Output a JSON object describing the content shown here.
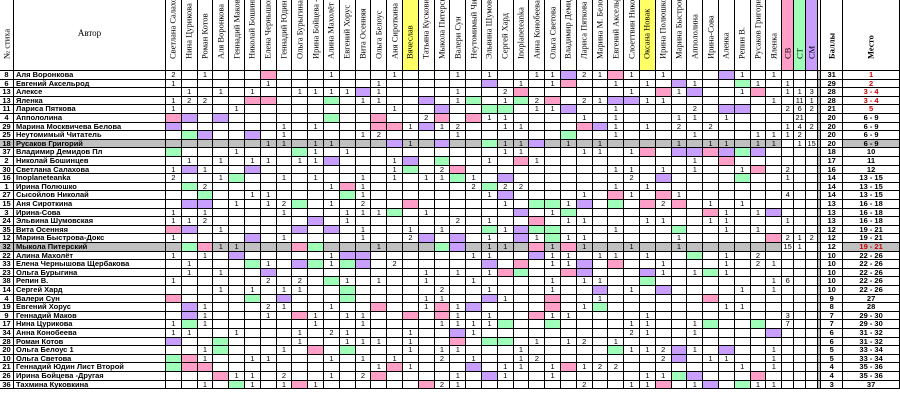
{
  "headers": {
    "num": "№ стиха",
    "author": "Автор",
    "judges": [
      "Светлана Салахова",
      "Нина Цурикова",
      "Роман Котов",
      "Аля Воронкова",
      "Геннадий Маков",
      "Николай Бошинцев",
      "Елена Чернышова Щ",
      "Геннадий Юдин ЛВ",
      "Ольга Бурыгина",
      "Ирина Бойцева -Друг",
      "Алина Махолёт",
      "Евгений Хорус",
      "Вита Осенняя",
      "Ольга Белоус",
      "Аня Сироткина",
      "Вячеслав",
      "Татьяна Кусковина",
      "Мыкола Питерский",
      "Валери Сун",
      "Неутомимый Читатель",
      "Эльвина Шумовская",
      "Сергей Хард",
      "Inoplaneteanka",
      "Анна Конобеева",
      "Ольга Светова",
      "Владимир Демидов",
      "Лариса Пяткова",
      "Марина М. Белова",
      "Евгений Аксельрод",
      "Слоеттвин Николай",
      "Оксана Новак",
      "Ирина Полюшко",
      "Марина Быстрова-Д",
      "Аппололина",
      "Ирина-Сова",
      "Аленка",
      "Репин В.",
      "Русаков Григорий",
      "Яленка"
    ],
    "sv": "СВ",
    "st": "СТ",
    "sm": "СМ",
    "score": "Баллы",
    "place": "Место"
  },
  "judge_header_colors": [
    "#fff",
    "#fff",
    "#fff",
    "#fff",
    "#fff",
    "#fff",
    "#fff",
    "#fff",
    "#fff",
    "#fff",
    "#fff",
    "#fff",
    "#fff",
    "#fff",
    "#fff",
    "#ffff66",
    "#fff",
    "#fff",
    "#fff",
    "#fff",
    "#fff",
    "#fff",
    "#fff",
    "#fff",
    "#fff",
    "#fff",
    "#fff",
    "#fff",
    "#fff",
    "#fff",
    "#ffff66",
    "#fff",
    "#fff",
    "#fff",
    "#fff",
    "#fff",
    "#fff",
    "#fff",
    "#fff"
  ],
  "extra_header_colors": {
    "sv": "#ff9fc8",
    "st": "#9fffb8",
    "sm": "#c89fff"
  },
  "rows": [
    {
      "num": "8",
      "author": "Аля Воронкова",
      "score": "31",
      "place": "1",
      "red": true
    },
    {
      "num": "6",
      "author": "Евгений Аксельрод",
      "score": "29",
      "place": "2",
      "red": true
    },
    {
      "num": "13",
      "author": "Алексе",
      "score": "28",
      "place": "3 - 4",
      "red": true
    },
    {
      "num": "13",
      "author": "Яленка",
      "score": "28",
      "place": "3 - 4",
      "red": true
    },
    {
      "num": "11",
      "author": "Лариса Пяткова",
      "score": "21",
      "place": "5",
      "red": true
    },
    {
      "num": "4",
      "author": "Аппололина",
      "score": "20",
      "place": "6 - 9",
      "red": false
    },
    {
      "num": "29",
      "author": "Марина Москвичева Белова",
      "score": "20",
      "place": "6 - 9",
      "red": false
    },
    {
      "num": "25",
      "author": "Неутомимый Читатель",
      "score": "20",
      "place": "6 - 9",
      "red": false
    },
    {
      "num": "18",
      "author": "Русаков Григорий",
      "score": "20",
      "place": "6 - 9",
      "red": false,
      "hl": true
    },
    {
      "num": "37",
      "author": "Владимир Демидов Пл",
      "score": "18",
      "place": "10",
      "red": false
    },
    {
      "num": "2",
      "author": "Николай Бошинцев",
      "score": "17",
      "place": "11",
      "red": false
    },
    {
      "num": "30",
      "author": "Светлана Салахова",
      "score": "16",
      "place": "12",
      "red": false
    },
    {
      "num": "16",
      "author": "Inoplaneteanka",
      "score": "14",
      "place": "13 - 15",
      "red": false
    },
    {
      "num": "1",
      "author": "Ирина Полюшко",
      "score": "14",
      "place": "13 - 15",
      "red": false
    },
    {
      "num": "27",
      "author": "Сысойлов Николай",
      "score": "14",
      "place": "13 - 15",
      "red": false
    },
    {
      "num": "15",
      "author": "Аня Сироткина",
      "score": "13",
      "place": "16 - 18",
      "red": false
    },
    {
      "num": "3",
      "author": "Ирина-Сова",
      "score": "13",
      "place": "16 - 18",
      "red": false
    },
    {
      "num": "24",
      "author": "Эльвина Шумовская",
      "score": "13",
      "place": "16 - 18",
      "red": false
    },
    {
      "num": "35",
      "author": "Вита Осенняя",
      "score": "12",
      "place": "19 - 21",
      "red": false
    },
    {
      "num": "12",
      "author": "Марина Быстрова-Докс",
      "score": "12",
      "place": "19 - 21",
      "red": false
    },
    {
      "num": "32",
      "author": "Мыкола Питерский",
      "score": "12",
      "place": "19 - 21",
      "red": true,
      "hl": true
    },
    {
      "num": "22",
      "author": "Алина Махолёт",
      "score": "10",
      "place": "22 - 26",
      "red": false
    },
    {
      "num": "33",
      "author": "Елена Чернышова Щербакова",
      "score": "10",
      "place": "22 - 26",
      "red": false
    },
    {
      "num": "23",
      "author": "Ольга Бурыгина",
      "score": "10",
      "place": "22 - 26",
      "red": false
    },
    {
      "num": "38",
      "author": "Репин В.",
      "score": "10",
      "place": "22 - 26",
      "red": false
    },
    {
      "num": "14",
      "author": "Сергей Хард",
      "score": "10",
      "place": "22 - 26",
      "red": false
    },
    {
      "num": "4",
      "author": "Валери Сун",
      "score": "9",
      "place": "27",
      "red": false
    },
    {
      "num": "19",
      "author": "Евгений Хорус",
      "score": "8",
      "place": "28",
      "red": false
    },
    {
      "num": "9",
      "author": "Геннадий Маков",
      "score": "7",
      "place": "29 - 30",
      "red": false
    },
    {
      "num": "17",
      "author": "Нина Цурикова",
      "score": "7",
      "place": "29 - 30",
      "red": false
    },
    {
      "num": "34",
      "author": "Анна Конобеева",
      "score": "6",
      "place": "31 - 32",
      "red": false
    },
    {
      "num": "28",
      "author": "Роман Котов",
      "score": "6",
      "place": "31 - 32",
      "red": false
    },
    {
      "num": "20",
      "author": "Ольга Белоус 1",
      "score": "5",
      "place": "33 - 34",
      "red": false
    },
    {
      "num": "10",
      "author": "Ольга Светова",
      "score": "5",
      "place": "33 - 34",
      "red": false
    },
    {
      "num": "21",
      "author": "Геннадий Юдин Лист Второй",
      "score": "4",
      "place": "35 - 36",
      "red": false
    },
    {
      "num": "26",
      "author": "Ирина Бойцева -Другая",
      "score": "4",
      "place": "35 - 36",
      "red": false
    },
    {
      "num": "36",
      "author": "Тахмина Куковкина",
      "score": "3",
      "place": "37",
      "red": false
    }
  ],
  "extra_values": [
    [
      "",
      "",
      ""
    ],
    [
      "1",
      "",
      ""
    ],
    [
      "1",
      "1",
      "3"
    ],
    [
      "",
      "11",
      "1"
    ],
    [
      "2",
      "6",
      "2"
    ],
    [
      "",
      "21",
      ""
    ],
    [
      "1",
      "4",
      "2"
    ],
    [
      "1",
      "2",
      ""
    ],
    [
      "",
      "1",
      "15"
    ],
    [
      "",
      "",
      ""
    ],
    [
      "",
      "",
      ""
    ],
    [
      "2",
      "",
      ""
    ],
    [
      "1",
      "",
      ""
    ],
    [
      "",
      "",
      ""
    ],
    [
      "4",
      "",
      ""
    ],
    [
      "",
      "",
      ""
    ],
    [
      "",
      "",
      ""
    ],
    [
      "1",
      "",
      ""
    ],
    [
      "",
      "",
      ""
    ],
    [
      "2",
      "1",
      "2"
    ],
    [
      "15",
      "1",
      ""
    ],
    [
      "",
      "",
      ""
    ],
    [
      "",
      "",
      ""
    ],
    [
      "",
      "",
      ""
    ],
    [
      "6",
      "",
      ""
    ],
    [
      "",
      "",
      ""
    ],
    [
      "",
      "",
      ""
    ],
    [
      "",
      "",
      ""
    ],
    [
      "3",
      "",
      ""
    ],
    [
      "7",
      "",
      ""
    ],
    [
      "",
      "",
      ""
    ],
    [
      "",
      "",
      ""
    ],
    [
      "",
      "",
      ""
    ],
    [
      "",
      "",
      ""
    ],
    [
      "",
      "",
      ""
    ],
    [
      "",
      "",
      ""
    ],
    [
      "",
      "",
      ""
    ]
  ],
  "colors": {
    "pink": "#ff9fc8",
    "green": "#9fffb8",
    "purple": "#c89fff",
    "yellow": "#ffff66",
    "grey": "#c0c0c0",
    "red": "#cc0000",
    "hl": "#c0c0c0"
  }
}
